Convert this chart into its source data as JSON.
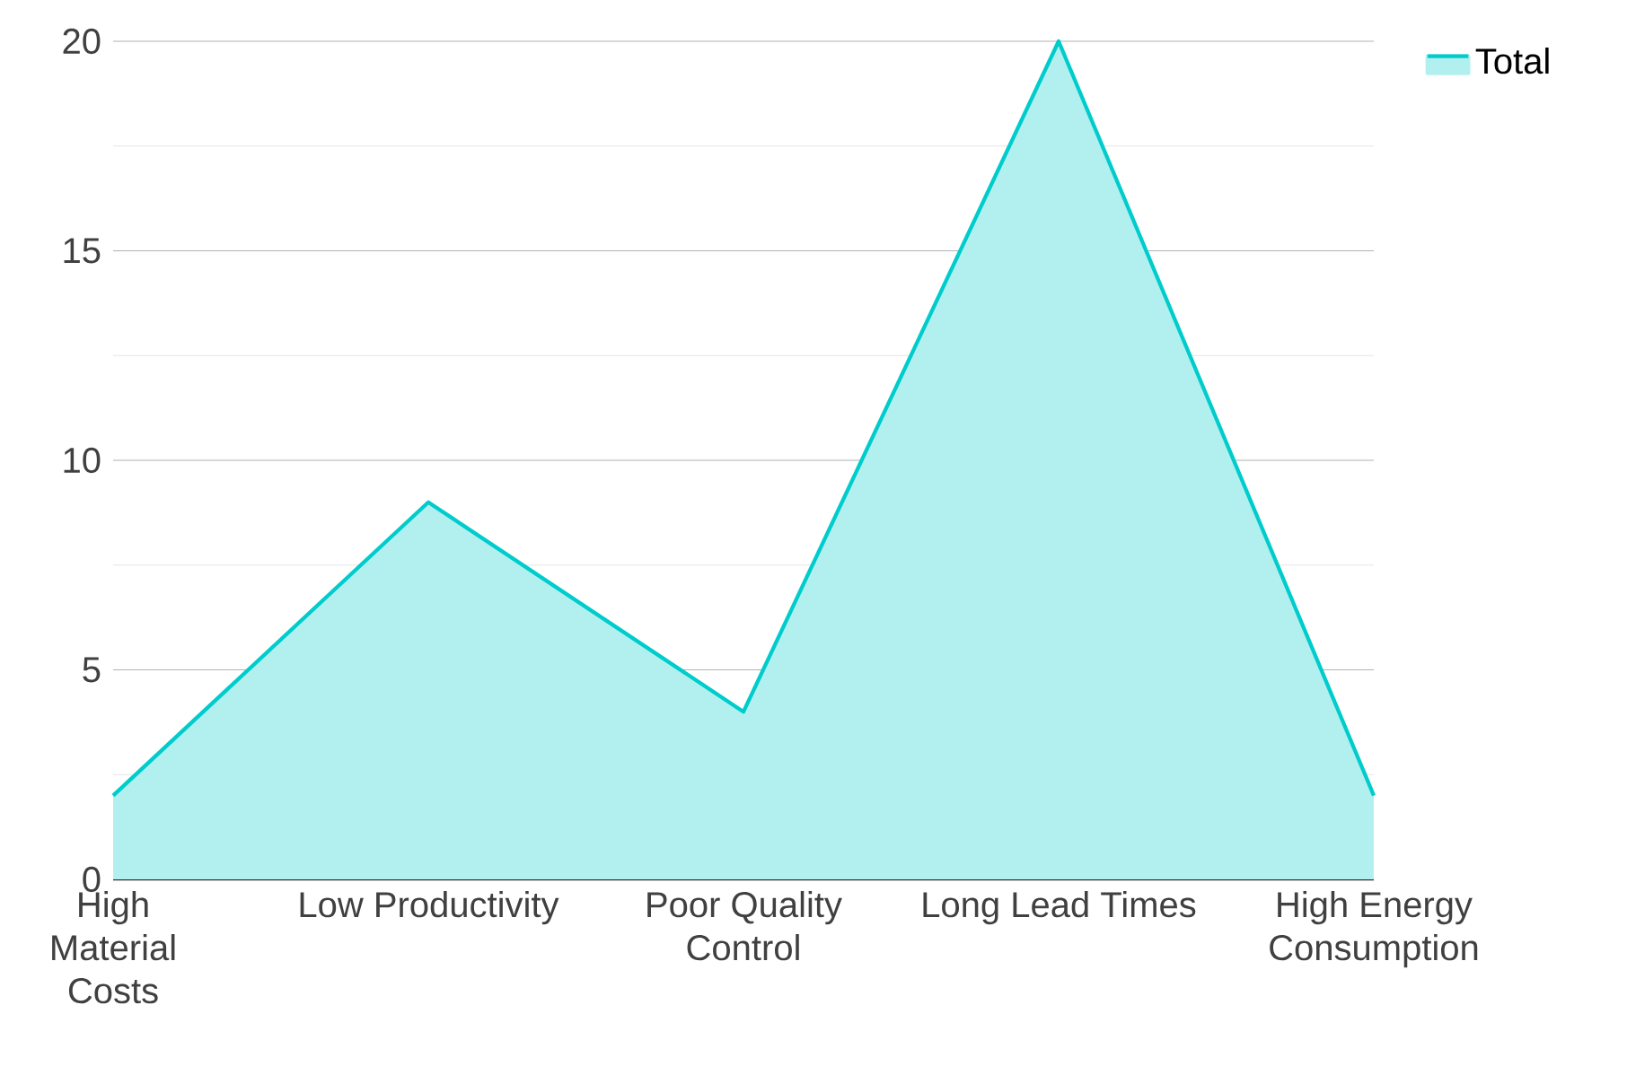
{
  "chart_data": {
    "type": "area",
    "categories": [
      "High Material Costs",
      "Low Productivity",
      "Poor Quality Control",
      "Long Lead Times",
      "High Energy Consumption"
    ],
    "series": [
      {
        "name": "Total",
        "color": "#00cccc",
        "values": [
          2,
          9,
          4,
          20,
          2
        ]
      }
    ],
    "ylim": [
      0,
      20
    ],
    "yticks": [
      0,
      5,
      10,
      15,
      20
    ],
    "grid": "y",
    "legend": "top right"
  }
}
